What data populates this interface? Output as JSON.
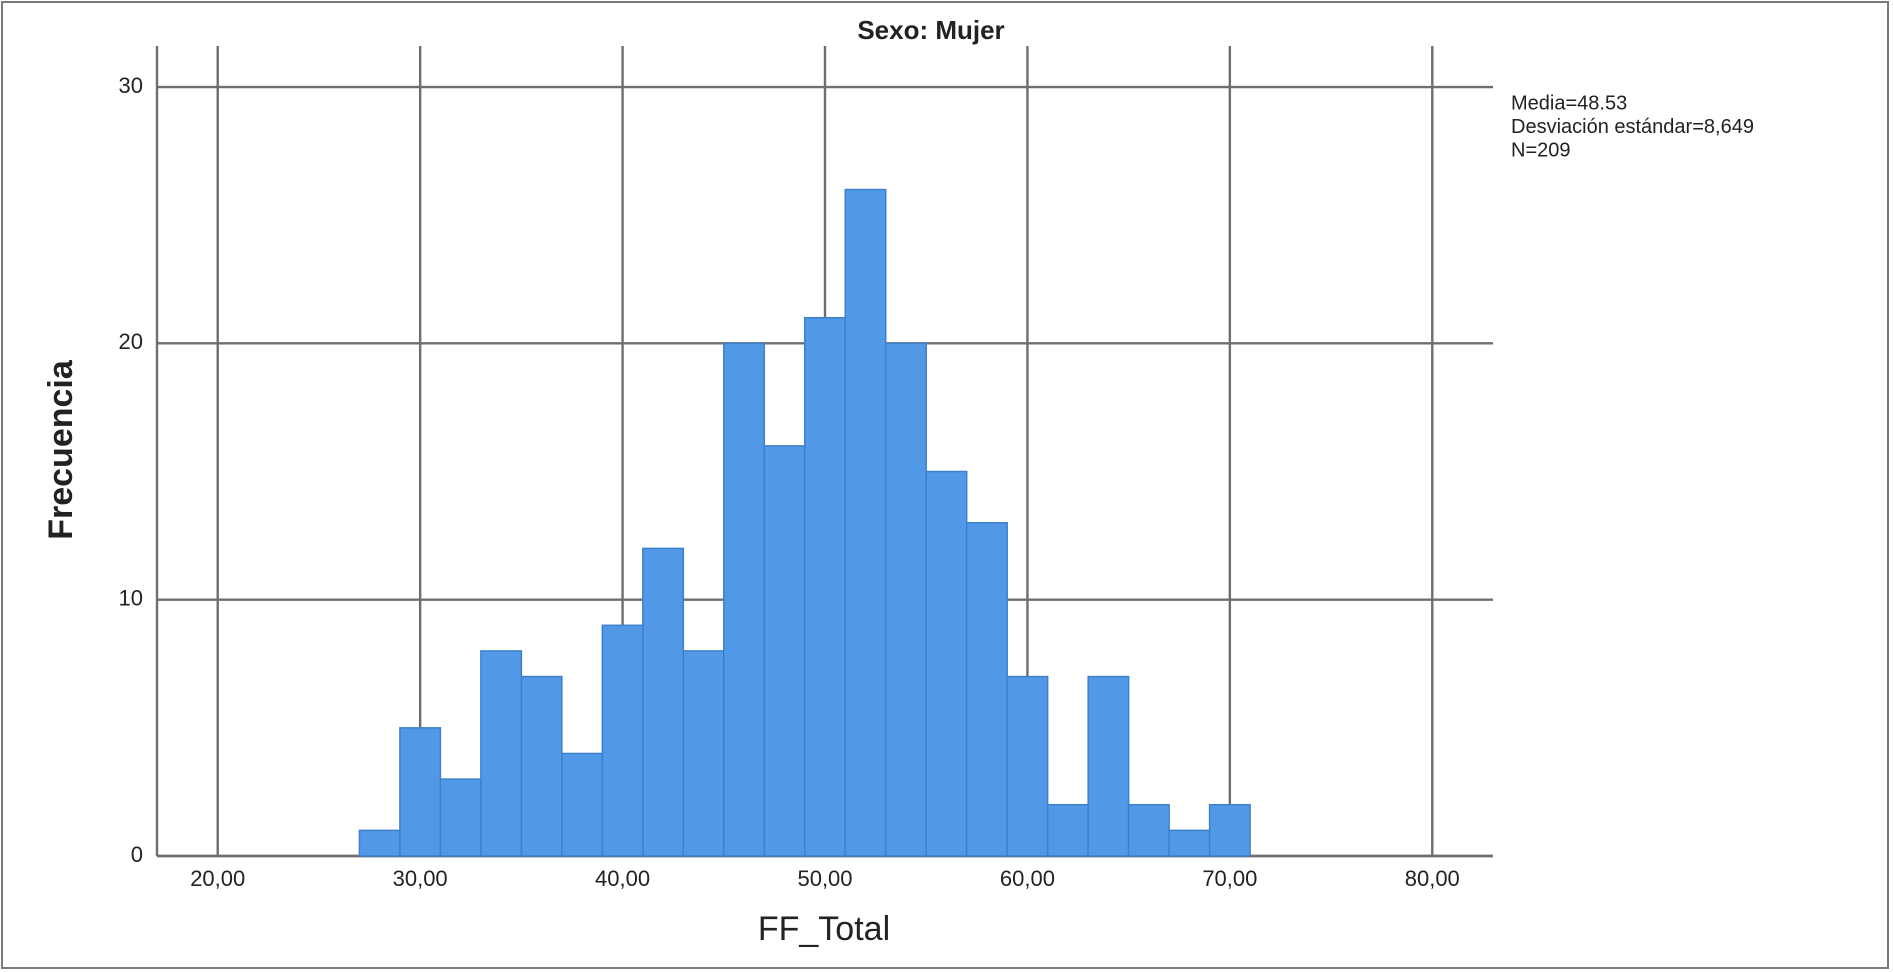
{
  "chart_data": {
    "type": "histogram",
    "title": "Sexo: Mujer",
    "x_label": "FF_Total",
    "y_label": "Frecuencia",
    "bins": [
      27,
      29,
      31,
      33,
      35,
      37,
      39,
      41,
      43,
      45,
      47,
      49,
      51,
      53,
      55,
      57,
      59,
      61,
      63,
      65,
      67,
      69,
      71
    ],
    "values": [
      1,
      5,
      3,
      8,
      7,
      4,
      9,
      12,
      8,
      20,
      16,
      21,
      26,
      20,
      15,
      13,
      7,
      2,
      7,
      2,
      1,
      2
    ],
    "color": "#5199e6",
    "xlim": [
      17,
      83
    ],
    "ylim": [
      0,
      31.6
    ],
    "xticks": [
      {
        "value": 20,
        "label": "20,00"
      },
      {
        "value": 30,
        "label": "30,00"
      },
      {
        "value": 40,
        "label": "40,00"
      },
      {
        "value": 50,
        "label": "50,00"
      },
      {
        "value": 60,
        "label": "60,00"
      },
      {
        "value": 70,
        "label": "70,00"
      },
      {
        "value": 80,
        "label": "80,00"
      }
    ],
    "yticks": [
      0,
      10,
      20,
      30
    ],
    "grid": true,
    "annotations": [
      "Media=48.53",
      "Desviación estándar=8,649",
      "N=209"
    ]
  }
}
